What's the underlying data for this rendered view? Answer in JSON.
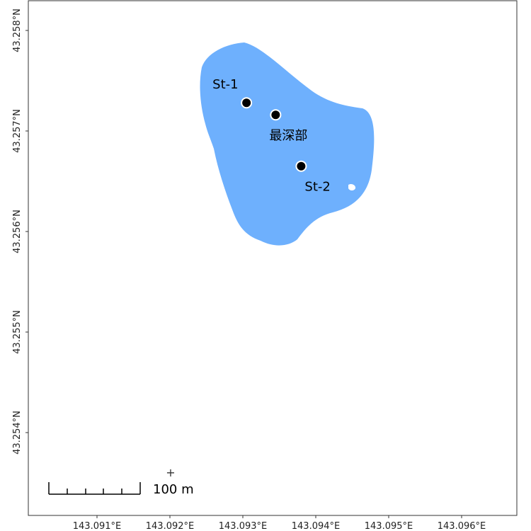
{
  "map": {
    "x_axis": {
      "unit": "°E",
      "ticks": [
        {
          "value": 143.091,
          "label": "143.091°E"
        },
        {
          "value": 143.092,
          "label": "143.092°E"
        },
        {
          "value": 143.093,
          "label": "143.093°E"
        },
        {
          "value": 143.094,
          "label": "143.094°E"
        },
        {
          "value": 143.095,
          "label": "143.095°E"
        },
        {
          "value": 143.096,
          "label": "143.096°E"
        }
      ]
    },
    "y_axis": {
      "unit": "°N",
      "ticks": [
        {
          "value": 43.258,
          "label": "43.258°N"
        },
        {
          "value": 43.257,
          "label": "43.257°N"
        },
        {
          "value": 43.256,
          "label": "43.256°N"
        },
        {
          "value": 43.255,
          "label": "43.255°N"
        },
        {
          "value": 43.254,
          "label": "43.254°N"
        }
      ]
    },
    "lake_color": "#6eb0fd",
    "points": [
      {
        "label": "St-1",
        "lon": 143.09305,
        "lat": 43.25728
      },
      {
        "label": "最深部",
        "lon": 143.09345,
        "lat": 43.25716
      },
      {
        "label": "St-2",
        "lon": 143.0938,
        "lat": 43.25665
      }
    ],
    "scale_bar": {
      "label": "100 m"
    },
    "north_marker": {
      "symbol": "+"
    }
  }
}
